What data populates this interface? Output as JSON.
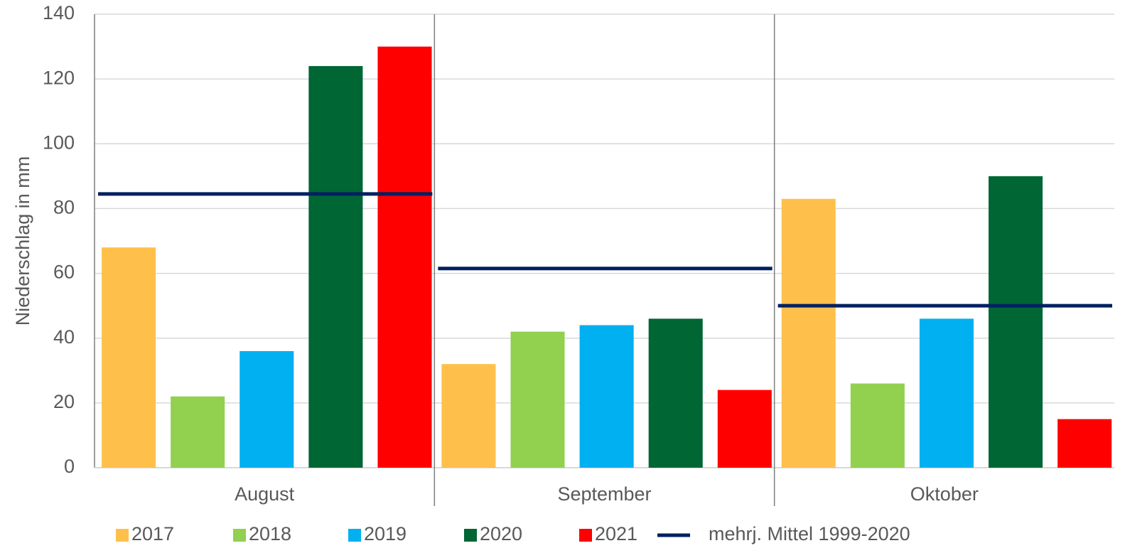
{
  "chart_data": {
    "type": "bar",
    "y_label": "Niederschlag in mm",
    "categories": [
      "August",
      "September",
      "Oktober"
    ],
    "series": [
      {
        "name": "2017",
        "color": "#ffc04b",
        "values": [
          68,
          32,
          83
        ]
      },
      {
        "name": "2018",
        "color": "#92d050",
        "values": [
          22,
          42,
          26
        ]
      },
      {
        "name": "2019",
        "color": "#00b0f0",
        "values": [
          36,
          44,
          46
        ]
      },
      {
        "name": "2020",
        "color": "#006633",
        "values": [
          124,
          46,
          90
        ]
      },
      {
        "name": "2021",
        "color": "#ff0000",
        "values": [
          130,
          24,
          15
        ]
      },
      {
        "name": "mehrj. Mittel 1999-2020",
        "color": "#002060",
        "type": "line",
        "values": [
          84.5,
          61.5,
          50
        ]
      }
    ],
    "ylim": [
      0,
      140
    ],
    "yticks": [
      0,
      20,
      40,
      60,
      80,
      100,
      120,
      140
    ],
    "grid": true,
    "legend": "bottom"
  }
}
